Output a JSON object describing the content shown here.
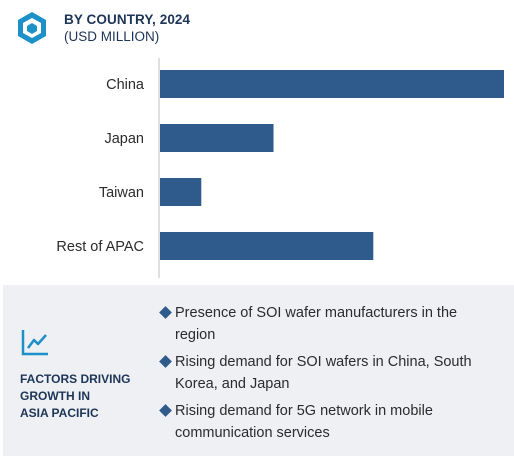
{
  "header": {
    "title": "BY COUNTRY, 2024",
    "subtitle": "(USD MILLION)"
  },
  "chart_data": {
    "type": "bar",
    "orientation": "horizontal",
    "title": "BY COUNTRY, 2024",
    "subtitle": "(USD MILLION)",
    "categories": [
      "China",
      "Japan",
      "Taiwan",
      "Rest of APAC"
    ],
    "values": [
      100,
      33,
      12,
      62
    ],
    "value_scale": "relative (no axis values shown)",
    "bar_color": "#2e5a8c",
    "grid": false,
    "legend": "none"
  },
  "panel": {
    "factors_label": "FACTORS DRIVING\nGROWTH IN\nASIA PACIFIC",
    "bullets": [
      "Presence of SOI wafer manufacturers in the region",
      "Rising demand for SOI wafers in China, South Korea, and Japan",
      "Rising demand for 5G network in mobile communication services"
    ]
  },
  "colors": {
    "accent": "#2e5a8c",
    "heading": "#1d3557",
    "panel_bg": "#eef0f4",
    "icon": "#1c90c7"
  },
  "icons": {
    "logo": "hexagon-cube-logo-icon",
    "trend": "trend-line-chart-icon"
  }
}
